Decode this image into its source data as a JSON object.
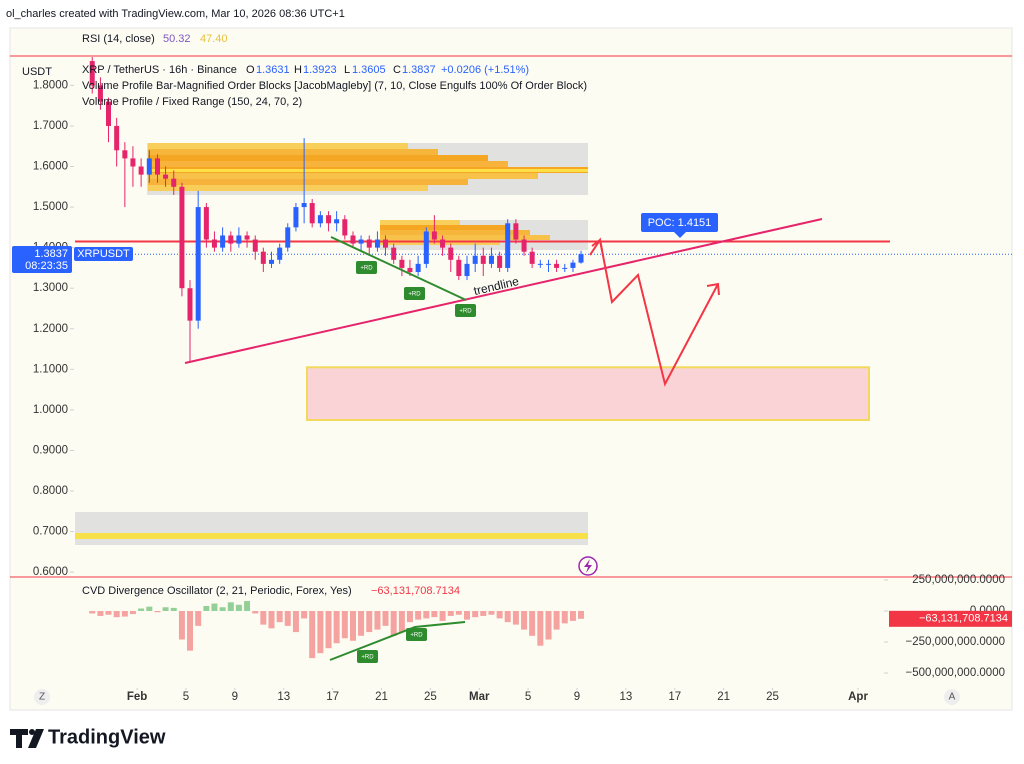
{
  "header": {
    "attribution": "ol_charles created with TradingView.com, Mar 10, 2026 08:36 UTC+1"
  },
  "rsi_legend": {
    "label": "RSI (14, close)",
    "value_a": "50.32",
    "value_b": "47.40",
    "color_a": "#7e57c2",
    "color_b": "#e8c23a"
  },
  "chart_data": [
    {
      "type": "candlestick",
      "currency": "USDT",
      "symbol_label": "XRP / TetherUS · 16h · Binance",
      "ohlc_letters": [
        "O",
        "H",
        "L",
        "C"
      ],
      "change": "+0.0206 (+1.51%)",
      "indicators": [
        "Volume Profile Bar-Magnified Order Blocks [JacobMagleby] (7, 10, Close Engulfs 100% Of Order Block)",
        "Volume Profile / Fixed Range (150, 24, 70, 2)"
      ],
      "symbol_tag": "XRPUSDT",
      "countdown": "08:23:35",
      "up_color": "#2962ff",
      "down_color": "#e5246b",
      "x": [
        -3.67,
        -3.0,
        -2.34,
        -1.67,
        -1.0,
        -0.34,
        0.33,
        1.0,
        1.67,
        2.33,
        3.0,
        3.67,
        4.33,
        5.0,
        5.67,
        6.33,
        7.0,
        7.67,
        8.33,
        9.0,
        9.67,
        10.33,
        11.0,
        11.67,
        12.33,
        13.0,
        13.67,
        14.33,
        15.0,
        15.67,
        16.33,
        17.0,
        17.67,
        18.33,
        19.0,
        19.67,
        20.33,
        21.0,
        21.67,
        22.33,
        23.0,
        23.67,
        24.33,
        25.0,
        25.67,
        26.33,
        27.0,
        27.67,
        28.33,
        29.0,
        29.67,
        30.33,
        31.0,
        31.67,
        32.33,
        33.0,
        33.67,
        34.33,
        35.0,
        35.67,
        36.33
      ],
      "open": [
        1.86,
        1.8,
        1.76,
        1.7,
        1.64,
        1.62,
        1.6,
        1.58,
        1.62,
        1.58,
        1.57,
        1.55,
        1.3,
        1.22,
        1.5,
        1.42,
        1.4,
        1.43,
        1.41,
        1.43,
        1.42,
        1.39,
        1.36,
        1.37,
        1.4,
        1.45,
        1.5,
        1.51,
        1.46,
        1.48,
        1.46,
        1.47,
        1.43,
        1.41,
        1.42,
        1.4,
        1.42,
        1.4,
        1.37,
        1.35,
        1.34,
        1.36,
        1.44,
        1.42,
        1.4,
        1.37,
        1.33,
        1.36,
        1.38,
        1.36,
        1.38,
        1.35,
        1.46,
        1.42,
        1.39,
        1.36,
        1.36,
        1.36,
        1.35,
        1.35,
        1.3631
      ],
      "high": [
        1.87,
        1.82,
        1.77,
        1.72,
        1.66,
        1.65,
        1.62,
        1.64,
        1.63,
        1.6,
        1.59,
        1.56,
        1.32,
        1.54,
        1.51,
        1.44,
        1.45,
        1.44,
        1.45,
        1.44,
        1.43,
        1.4,
        1.39,
        1.41,
        1.46,
        1.51,
        1.67,
        1.52,
        1.49,
        1.49,
        1.49,
        1.48,
        1.44,
        1.43,
        1.43,
        1.44,
        1.43,
        1.41,
        1.38,
        1.37,
        1.38,
        1.45,
        1.48,
        1.43,
        1.41,
        1.38,
        1.38,
        1.41,
        1.4,
        1.4,
        1.39,
        1.47,
        1.47,
        1.43,
        1.4,
        1.37,
        1.37,
        1.37,
        1.36,
        1.37,
        1.3923
      ],
      "low": [
        1.78,
        1.74,
        1.66,
        1.6,
        1.5,
        1.55,
        1.55,
        1.56,
        1.56,
        1.55,
        1.53,
        1.28,
        1.12,
        1.2,
        1.4,
        1.39,
        1.39,
        1.39,
        1.4,
        1.4,
        1.37,
        1.34,
        1.35,
        1.36,
        1.39,
        1.44,
        1.46,
        1.45,
        1.45,
        1.44,
        1.44,
        1.42,
        1.4,
        1.39,
        1.38,
        1.39,
        1.38,
        1.36,
        1.33,
        1.33,
        1.33,
        1.35,
        1.41,
        1.38,
        1.34,
        1.32,
        1.32,
        1.34,
        1.33,
        1.35,
        1.34,
        1.34,
        1.41,
        1.38,
        1.35,
        1.35,
        1.34,
        1.34,
        1.34,
        1.34,
        1.3605
      ],
      "close": [
        1.8,
        1.76,
        1.7,
        1.64,
        1.62,
        1.6,
        1.58,
        1.62,
        1.58,
        1.57,
        1.55,
        1.3,
        1.22,
        1.5,
        1.42,
        1.4,
        1.43,
        1.41,
        1.43,
        1.42,
        1.39,
        1.36,
        1.37,
        1.4,
        1.45,
        1.5,
        1.51,
        1.46,
        1.48,
        1.46,
        1.47,
        1.43,
        1.41,
        1.42,
        1.4,
        1.42,
        1.4,
        1.37,
        1.35,
        1.34,
        1.36,
        1.44,
        1.42,
        1.4,
        1.37,
        1.33,
        1.36,
        1.38,
        1.36,
        1.38,
        1.35,
        1.46,
        1.42,
        1.39,
        1.36,
        1.36,
        1.36,
        1.35,
        1.35,
        1.3631,
        1.3837
      ],
      "xlim": [
        -10.4,
        71.6
      ],
      "ylim": [
        0.588,
        1.87
      ],
      "xticks": [
        {
          "value": 0,
          "label": "Feb"
        },
        {
          "value": 4,
          "label": "5"
        },
        {
          "value": 8,
          "label": "9"
        },
        {
          "value": 12,
          "label": "13"
        },
        {
          "value": 16,
          "label": "17"
        },
        {
          "value": 20,
          "label": "21"
        },
        {
          "value": 24,
          "label": "25"
        },
        {
          "value": 28,
          "label": "Mar"
        },
        {
          "value": 32,
          "label": "5"
        },
        {
          "value": 36,
          "label": "9"
        },
        {
          "value": 40,
          "label": "13"
        },
        {
          "value": 44,
          "label": "17"
        },
        {
          "value": 48,
          "label": "21"
        },
        {
          "value": 52,
          "label": "25"
        },
        {
          "value": 59,
          "label": "Apr"
        }
      ],
      "yticks": [
        {
          "value": 0.6,
          "label": "0.6000"
        },
        {
          "value": 0.7,
          "label": "0.7000"
        },
        {
          "value": 0.8,
          "label": "0.8000"
        },
        {
          "value": 0.9,
          "label": "0.9000"
        },
        {
          "value": 1.0,
          "label": "1.0000"
        },
        {
          "value": 1.1,
          "label": "1.1000"
        },
        {
          "value": 1.2,
          "label": "1.2000"
        },
        {
          "value": 1.3,
          "label": "1.3000"
        },
        {
          "value": 1.4,
          "label": "1.4000"
        },
        {
          "value": 1.5,
          "label": "1.5000"
        },
        {
          "value": 1.6,
          "label": "1.6000"
        },
        {
          "value": 1.7,
          "label": "1.7000"
        },
        {
          "value": 1.8,
          "label": "1.8000"
        }
      ],
      "grid": false,
      "resistance": 1.4151,
      "resistance_color": "#f23645",
      "support_zone": [
        0.975,
        1.105
      ],
      "annotations": {
        "poc": "POC: 1.4151",
        "trendline": "trendline",
        "rd": [
          "+RD",
          "+RD",
          "+RD"
        ]
      }
    },
    {
      "type": "bar",
      "legend": "CVD Divergence Oscillator (2, 21, Periodic, Forex, Yes)",
      "last_value_label": "−63,131,708.7134",
      "up_color": "#93cf96",
      "down_color": "#f4a3a0",
      "x": [
        -3.67,
        -3.0,
        -2.34,
        -1.67,
        -1.0,
        -0.34,
        0.33,
        1.0,
        1.67,
        2.33,
        3.0,
        3.67,
        4.33,
        5.0,
        5.67,
        6.33,
        7.0,
        7.67,
        8.33,
        9.0,
        9.67,
        10.33,
        11.0,
        11.67,
        12.33,
        13.0,
        13.67,
        14.33,
        15.0,
        15.67,
        16.33,
        17.0,
        17.67,
        18.33,
        19.0,
        19.67,
        20.33,
        21.0,
        21.67,
        22.33,
        23.0,
        23.67,
        24.33,
        25.0,
        25.67,
        26.33,
        27.0,
        27.67,
        28.33,
        29.0,
        29.67,
        30.33,
        31.0,
        31.67,
        32.33,
        33.0,
        33.67,
        34.33,
        35.0,
        35.67,
        36.33
      ],
      "values": [
        -20000000,
        -40000000,
        -30000000,
        -50000000,
        -45000000,
        -25000000,
        20000000,
        35000000,
        -10000000,
        30000000,
        25000000,
        -230000000,
        -320000000,
        -120000000,
        40000000,
        60000000,
        30000000,
        70000000,
        50000000,
        80000000,
        -20000000,
        -110000000,
        -140000000,
        -90000000,
        -120000000,
        -170000000,
        -60000000,
        -380000000,
        -340000000,
        -300000000,
        -260000000,
        -220000000,
        -240000000,
        -200000000,
        -170000000,
        -150000000,
        -120000000,
        -200000000,
        -170000000,
        -90000000,
        -70000000,
        -60000000,
        -50000000,
        -80000000,
        -40000000,
        -30000000,
        -70000000,
        -50000000,
        -40000000,
        -30000000,
        -60000000,
        -90000000,
        -110000000,
        -150000000,
        -200000000,
        -280000000,
        -230000000,
        -150000000,
        -100000000,
        -80000000,
        -63131708.7134
      ],
      "xlim": [
        -10.4,
        71.6
      ],
      "ylim": [
        -637000000,
        274000000
      ],
      "yticks": [
        {
          "value": 250000000,
          "label": "250,000,000.0000"
        },
        {
          "value": 0,
          "label": "0.0000"
        },
        {
          "value": -250000000,
          "label": "−250,000,000.0000"
        },
        {
          "value": -500000000,
          "label": "−500,000,000.0000"
        }
      ],
      "annotations": {
        "rd": [
          "+RD",
          "+RD"
        ]
      }
    }
  ],
  "ui": {
    "left_button": "Z",
    "right_button": "A"
  },
  "footer": {
    "logo": "TradingView"
  }
}
